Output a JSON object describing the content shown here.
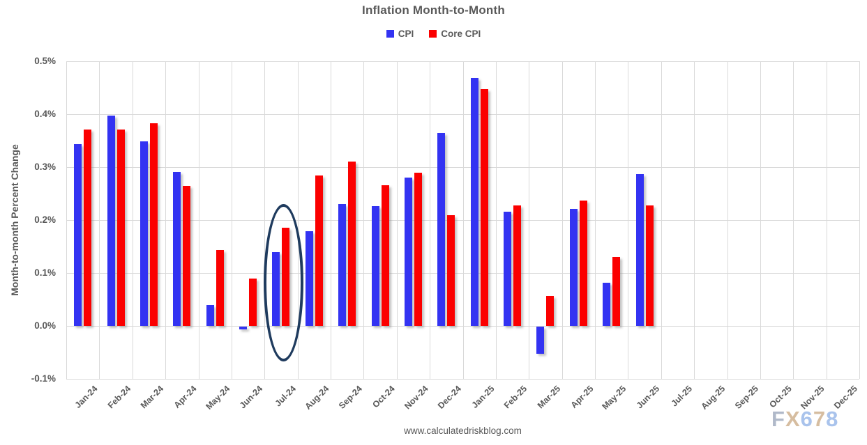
{
  "header": {
    "title": "Inflation Month-to-Month"
  },
  "legend": {
    "items": [
      {
        "label": "CPI",
        "color": "#3333f2"
      },
      {
        "label": "Core CPI",
        "color": "#fb0000"
      }
    ]
  },
  "y_axis": {
    "title": "Month-to-month Percent Change",
    "tick_labels": [
      "0.5%",
      "0.4%",
      "0.3%",
      "0.2%",
      "0.1%",
      "0.0%",
      "-0.1%"
    ]
  },
  "footer": {
    "url": "www.calculatedriskblog.com"
  },
  "watermark": {
    "text": "FX678",
    "letter_colors": [
      "#b0b9c9",
      "#d6bda0",
      "#a9c3ec",
      "#d6bda0",
      "#a9c3ec"
    ]
  },
  "chart_data": {
    "type": "bar",
    "title": "Inflation Month-to-Month",
    "xlabel": "",
    "ylabel": "Month-to-month Percent Change",
    "unit": "percent",
    "ylim": [
      -0.1,
      0.5
    ],
    "ytick_step": 0.1,
    "grid": true,
    "legend_position": "top",
    "categories": [
      "Jan-24",
      "Feb-24",
      "Mar-24",
      "Apr-24",
      "May-24",
      "Jun-24",
      "Jul-24",
      "Aug-24",
      "Sep-24",
      "Oct-24",
      "Nov-24",
      "Dec-24",
      "Jan-25",
      "Feb-25",
      "Mar-25",
      "Apr-25",
      "May-25",
      "Jun-25",
      "Jul-25",
      "Aug-25",
      "Sep-25",
      "Oct-25",
      "Nov-25",
      "Dec-25"
    ],
    "series": [
      {
        "name": "CPI",
        "color": "#3333f2",
        "values": [
          0.343,
          0.397,
          0.349,
          0.291,
          0.039,
          -0.005,
          0.139,
          0.179,
          0.23,
          0.226,
          0.28,
          0.364,
          0.468,
          0.216,
          -0.051,
          0.221,
          0.081,
          0.287,
          null,
          null,
          null,
          null,
          null,
          null
        ]
      },
      {
        "name": "Core CPI",
        "color": "#fb0000",
        "values": [
          0.371,
          0.371,
          0.383,
          0.264,
          0.143,
          0.09,
          0.185,
          0.284,
          0.311,
          0.266,
          0.289,
          0.209,
          0.447,
          0.227,
          0.056,
          0.237,
          0.13,
          0.228,
          null,
          null,
          null,
          null,
          null,
          null
        ]
      }
    ],
    "annotation": {
      "type": "ellipse",
      "category": "Jul-24",
      "color": "#1f3b5e"
    }
  }
}
